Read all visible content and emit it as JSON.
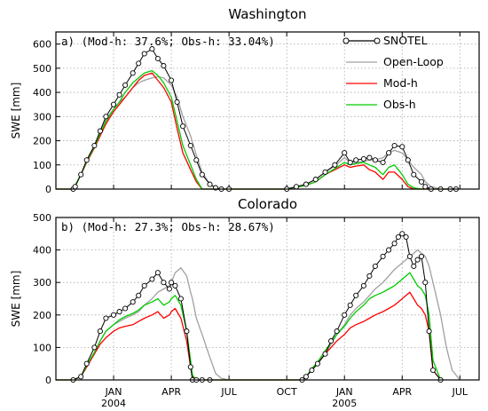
{
  "chart_data": [
    {
      "type": "line",
      "title": "Washington",
      "annotation": "a) (Mod-h: 37.6%; Obs-h: 33.04%)",
      "ylabel": "SWE [mm]",
      "ylim": [
        0,
        650
      ],
      "yticks": [
        0,
        100,
        200,
        300,
        400,
        500,
        600
      ],
      "grid": true,
      "legend_position": "top-right",
      "legend": [
        "SNOTEL",
        "Open-Loop",
        "Mod-h",
        "Obs-h"
      ],
      "x_units": "months since 2003-10-01",
      "series": [
        {
          "name": "SNOTEL",
          "color": "#000000",
          "marker": "circle",
          "x": [
            0.9,
            1.0,
            1.3,
            1.6,
            2.0,
            2.3,
            2.6,
            3.0,
            3.3,
            3.6,
            4.0,
            4.3,
            4.6,
            5.0,
            5.3,
            5.6,
            6.0,
            6.3,
            6.6,
            7.0,
            7.3,
            7.6,
            8.0,
            8.3,
            8.6,
            9.0,
            12.0,
            12.5,
            13.0,
            13.5,
            14.0,
            14.5,
            15.0,
            15.3,
            15.6,
            16.0,
            16.3,
            16.6,
            17.0,
            17.3,
            17.6,
            18.0,
            18.3,
            18.6,
            19.0,
            19.2,
            19.5,
            20.0,
            20.5,
            20.8
          ],
          "y": [
            0,
            10,
            60,
            120,
            180,
            240,
            300,
            350,
            390,
            430,
            480,
            520,
            560,
            580,
            540,
            510,
            450,
            360,
            260,
            180,
            120,
            60,
            20,
            5,
            0,
            0,
            0,
            10,
            20,
            40,
            70,
            100,
            150,
            110,
            120,
            125,
            130,
            120,
            110,
            150,
            180,
            175,
            120,
            60,
            30,
            10,
            0,
            0,
            0,
            0
          ]
        },
        {
          "name": "Open-Loop",
          "color": "#a0a0a0",
          "x": [
            0,
            0.9,
            1.3,
            1.6,
            2.0,
            2.3,
            2.6,
            3.0,
            3.3,
            3.6,
            4.0,
            4.3,
            4.6,
            5.0,
            5.3,
            5.6,
            6.0,
            6.3,
            6.6,
            7.0,
            7.3,
            7.6,
            8.0,
            8.3,
            8.6,
            9.0,
            12.0,
            12.5,
            13.0,
            13.5,
            14.0,
            14.5,
            15.0,
            15.3,
            15.6,
            16.0,
            16.3,
            16.6,
            17.0,
            17.3,
            17.6,
            18.0,
            18.3,
            18.6,
            19.0,
            19.2,
            19.5,
            20.0,
            20.8
          ],
          "y": [
            0,
            0,
            60,
            120,
            180,
            240,
            290,
            330,
            360,
            380,
            420,
            440,
            450,
            460,
            465,
            460,
            430,
            380,
            300,
            220,
            140,
            70,
            20,
            5,
            0,
            0,
            0,
            10,
            20,
            40,
            70,
            95,
            130,
            110,
            110,
            115,
            120,
            120,
            130,
            150,
            160,
            150,
            120,
            90,
            60,
            30,
            10,
            0,
            0
          ]
        },
        {
          "name": "Mod-h",
          "color": "#ff0000",
          "x": [
            0,
            0.9,
            1.3,
            1.6,
            2.0,
            2.3,
            2.6,
            3.0,
            3.3,
            3.6,
            4.0,
            4.3,
            4.6,
            5.0,
            5.3,
            5.6,
            6.0,
            6.3,
            6.6,
            7.0,
            7.3,
            7.6,
            8.0,
            8.3,
            8.6,
            9.0,
            12.0,
            12.5,
            13.0,
            13.5,
            14.0,
            14.5,
            15.0,
            15.3,
            15.6,
            16.0,
            16.3,
            16.6,
            17.0,
            17.3,
            17.6,
            18.0,
            18.3,
            18.6,
            19.0,
            19.2,
            19.5,
            20.0,
            20.8
          ],
          "y": [
            0,
            0,
            60,
            110,
            170,
            220,
            270,
            320,
            350,
            380,
            420,
            450,
            470,
            480,
            450,
            420,
            360,
            250,
            150,
            80,
            30,
            0,
            0,
            0,
            0,
            0,
            0,
            8,
            15,
            30,
            60,
            80,
            100,
            90,
            95,
            100,
            80,
            70,
            40,
            70,
            70,
            40,
            10,
            0,
            0,
            0,
            0,
            0,
            0
          ]
        },
        {
          "name": "Obs-h",
          "color": "#00cc00",
          "x": [
            0,
            0.9,
            1.3,
            1.6,
            2.0,
            2.3,
            2.6,
            3.0,
            3.3,
            3.6,
            4.0,
            4.3,
            4.6,
            5.0,
            5.3,
            5.6,
            6.0,
            6.3,
            6.6,
            7.0,
            7.3,
            7.6,
            8.0,
            8.3,
            8.6,
            9.0,
            12.0,
            12.5,
            13.0,
            13.5,
            14.0,
            14.5,
            15.0,
            15.3,
            15.6,
            16.0,
            16.3,
            16.6,
            17.0,
            17.3,
            17.6,
            18.0,
            18.3,
            18.6,
            19.0,
            19.2,
            19.5,
            20.0,
            20.8
          ],
          "y": [
            0,
            0,
            60,
            115,
            175,
            230,
            280,
            330,
            360,
            400,
            440,
            460,
            480,
            490,
            470,
            440,
            380,
            280,
            180,
            100,
            40,
            0,
            0,
            0,
            0,
            0,
            0,
            8,
            15,
            30,
            60,
            85,
            110,
            100,
            105,
            110,
            100,
            90,
            60,
            90,
            100,
            60,
            20,
            5,
            0,
            0,
            0,
            0,
            0
          ]
        }
      ]
    },
    {
      "type": "line",
      "title": "Colorado",
      "annotation": "b) (Mod-h: 27.3%; Obs-h: 28.67%)",
      "ylabel": "SWE [mm]",
      "ylim": [
        0,
        500
      ],
      "yticks": [
        0,
        100,
        200,
        300,
        400,
        500
      ],
      "grid": true,
      "xtick_labels": [
        "JAN",
        "APR",
        "JUL",
        "OCT",
        "JAN",
        "APR",
        "JUL"
      ],
      "xtick_positions": [
        3,
        6,
        9,
        12,
        15,
        18,
        21
      ],
      "year_labels": [
        "2004",
        "2005"
      ],
      "year_positions": [
        3,
        15
      ],
      "x_units": "months since 2003-10-01",
      "series": [
        {
          "name": "SNOTEL",
          "color": "#000000",
          "marker": "circle",
          "x": [
            0.9,
            1.3,
            1.6,
            2.0,
            2.3,
            2.6,
            3.0,
            3.3,
            3.6,
            4.0,
            4.3,
            4.6,
            5.0,
            5.3,
            5.6,
            5.9,
            6.0,
            6.2,
            6.5,
            6.8,
            7.0,
            7.1,
            7.3,
            7.6,
            8.0,
            12.8,
            13.0,
            13.3,
            13.6,
            14.0,
            14.3,
            14.6,
            15.0,
            15.3,
            15.6,
            16.0,
            16.3,
            16.6,
            17.0,
            17.3,
            17.6,
            17.8,
            18.0,
            18.2,
            18.4,
            18.6,
            18.8,
            19.0,
            19.2,
            19.4,
            19.6,
            20.0
          ],
          "y": [
            0,
            10,
            50,
            100,
            150,
            190,
            200,
            210,
            220,
            240,
            260,
            290,
            310,
            330,
            300,
            280,
            300,
            290,
            250,
            150,
            40,
            0,
            0,
            0,
            0,
            0,
            10,
            30,
            50,
            80,
            120,
            150,
            200,
            230,
            260,
            290,
            320,
            350,
            380,
            400,
            420,
            440,
            450,
            440,
            380,
            350,
            370,
            380,
            300,
            150,
            30,
            0
          ]
        },
        {
          "name": "Open-Loop",
          "color": "#a0a0a0",
          "x": [
            0,
            0.9,
            1.3,
            1.6,
            2.0,
            2.3,
            2.6,
            3.0,
            3.3,
            3.6,
            4.0,
            4.3,
            4.6,
            5.0,
            5.3,
            5.6,
            5.9,
            6.0,
            6.2,
            6.5,
            6.8,
            7.0,
            7.1,
            7.3,
            7.6,
            8.0,
            8.3,
            8.6,
            9.0,
            12.8,
            13.0,
            13.3,
            13.6,
            14.0,
            14.3,
            14.6,
            15.0,
            15.3,
            15.6,
            16.0,
            16.3,
            16.6,
            17.0,
            17.3,
            17.6,
            17.8,
            18.0,
            18.2,
            18.4,
            18.6,
            18.8,
            19.0,
            19.2,
            19.4,
            19.6,
            20.0,
            20.3,
            20.6,
            21.0
          ],
          "y": [
            0,
            0,
            10,
            40,
            80,
            120,
            150,
            170,
            180,
            190,
            200,
            210,
            230,
            250,
            270,
            280,
            290,
            300,
            330,
            345,
            320,
            270,
            250,
            190,
            140,
            70,
            20,
            5,
            0,
            0,
            10,
            30,
            50,
            80,
            110,
            140,
            170,
            200,
            220,
            240,
            260,
            280,
            300,
            320,
            340,
            350,
            360,
            370,
            380,
            390,
            400,
            390,
            380,
            350,
            300,
            200,
            100,
            30,
            0
          ]
        },
        {
          "name": "Mod-h",
          "color": "#ff0000",
          "x": [
            0,
            0.9,
            1.3,
            1.6,
            2.0,
            2.3,
            2.6,
            3.0,
            3.3,
            3.6,
            4.0,
            4.3,
            4.6,
            5.0,
            5.3,
            5.6,
            5.9,
            6.0,
            6.2,
            6.5,
            6.8,
            7.0,
            7.1,
            7.3,
            7.6,
            8.0,
            12.8,
            13.0,
            13.3,
            13.6,
            14.0,
            14.3,
            14.6,
            15.0,
            15.3,
            15.6,
            16.0,
            16.3,
            16.6,
            17.0,
            17.3,
            17.6,
            17.8,
            18.0,
            18.2,
            18.4,
            18.6,
            18.8,
            19.0,
            19.2,
            19.4,
            19.6,
            20.0
          ],
          "y": [
            0,
            0,
            10,
            40,
            80,
            110,
            130,
            150,
            160,
            165,
            170,
            180,
            190,
            200,
            210,
            190,
            200,
            210,
            220,
            190,
            120,
            40,
            10,
            0,
            0,
            0,
            0,
            10,
            30,
            50,
            80,
            100,
            120,
            140,
            160,
            170,
            180,
            190,
            200,
            210,
            220,
            230,
            240,
            250,
            260,
            270,
            250,
            230,
            220,
            200,
            150,
            30,
            0
          ]
        },
        {
          "name": "Obs-h",
          "color": "#00cc00",
          "x": [
            0,
            0.9,
            1.3,
            1.6,
            2.0,
            2.3,
            2.6,
            3.0,
            3.3,
            3.6,
            4.0,
            4.3,
            4.6,
            5.0,
            5.3,
            5.6,
            5.9,
            6.0,
            6.2,
            6.5,
            6.8,
            7.0,
            7.1,
            7.3,
            7.6,
            8.0,
            12.8,
            13.0,
            13.3,
            13.6,
            14.0,
            14.3,
            14.6,
            15.0,
            15.3,
            15.6,
            16.0,
            16.3,
            16.6,
            17.0,
            17.3,
            17.6,
            17.8,
            18.0,
            18.2,
            18.4,
            18.6,
            18.8,
            19.0,
            19.2,
            19.4,
            19.6,
            20.0
          ],
          "y": [
            0,
            0,
            10,
            45,
            85,
            120,
            150,
            170,
            185,
            195,
            205,
            215,
            230,
            240,
            250,
            230,
            240,
            250,
            260,
            230,
            150,
            60,
            15,
            0,
            0,
            0,
            0,
            10,
            35,
            55,
            90,
            115,
            140,
            165,
            190,
            210,
            230,
            250,
            260,
            270,
            280,
            290,
            300,
            310,
            320,
            330,
            310,
            290,
            280,
            260,
            200,
            60,
            0
          ]
        }
      ]
    }
  ]
}
